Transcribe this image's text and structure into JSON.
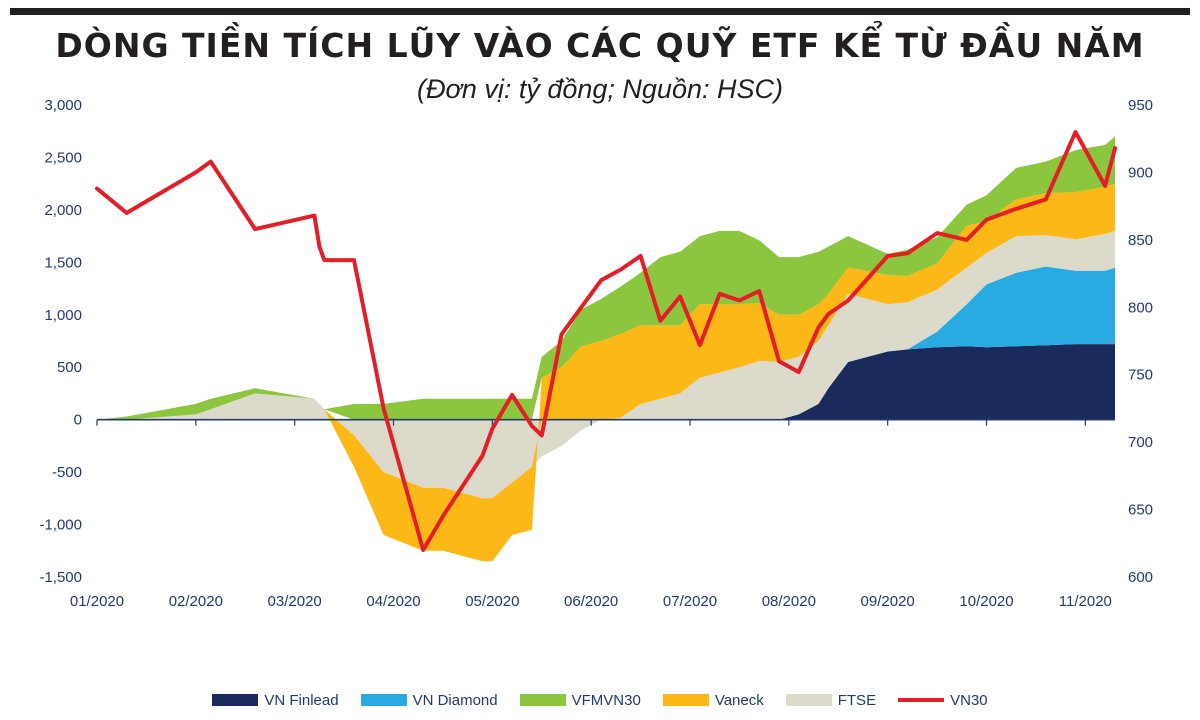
{
  "header": {
    "title": "DÒNG TIỀN TÍCH LŨY VÀO CÁC QUỸ ETF KỂ TỪ ĐẦU NĂM",
    "subtitle": "(Đơn vị: tỷ đồng; Nguồn: HSC)"
  },
  "chart_data": {
    "type": "area",
    "title": "DÒNG TIỀN TÍCH LŨY VÀO CÁC QUỸ ETF KỂ TỪ ĐẦU NĂM",
    "subtitle": "(Đơn vị: tỷ đồng; Nguồn: HSC)",
    "x_tick_labels": [
      "01/2020",
      "02/2020",
      "03/2020",
      "04/2020",
      "05/2020",
      "06/2020",
      "07/2020",
      "08/2020",
      "09/2020",
      "10/2020",
      "11/2020"
    ],
    "y_left_ticks": [
      "3,000",
      "2,500",
      "2,000",
      "1,500",
      "1,000",
      "500",
      "0",
      "-500",
      "-1,000",
      "-1,500"
    ],
    "y_left_range": [
      -1500,
      3000
    ],
    "y_right_ticks": [
      "950",
      "900",
      "850",
      "800",
      "750",
      "700",
      "650",
      "600"
    ],
    "y_right_range": [
      600,
      950
    ],
    "x_range": [
      0,
      10.3
    ],
    "legend_position": "bottom",
    "grid": false,
    "stacked_series_bottom_to_top": [
      "VN Finlead",
      "VN Diamond",
      "FTSE",
      "Vaneck",
      "VFMVN30"
    ],
    "x": [
      0,
      0.3,
      1,
      1.15,
      1.6,
      2.2,
      2.25,
      2.3,
      2.6,
      2.9,
      3.3,
      3.5,
      3.9,
      4,
      4.2,
      4.4,
      4.5,
      4.7,
      4.9,
      5.1,
      5.3,
      5.5,
      5.7,
      5.9,
      6.1,
      6.3,
      6.5,
      6.7,
      6.9,
      7.1,
      7.3,
      7.4,
      7.6,
      8,
      8.2,
      8.5,
      8.8,
      9,
      9.3,
      9.6,
      9.9,
      10.2,
      10.3
    ],
    "series": [
      {
        "name": "VN Finlead",
        "axis": "left",
        "color": "#1b2a5c",
        "values": [
          0,
          0,
          0,
          0,
          0,
          0,
          0,
          0,
          0,
          0,
          0,
          0,
          0,
          0,
          0,
          0,
          0,
          0,
          0,
          0,
          0,
          0,
          0,
          0,
          0,
          0,
          0,
          0,
          0,
          50,
          150,
          300,
          550,
          650,
          670,
          690,
          700,
          690,
          700,
          710,
          720,
          720,
          720
        ]
      },
      {
        "name": "VN Diamond",
        "axis": "left",
        "color": "#29abe2",
        "values": [
          0,
          0,
          0,
          0,
          0,
          0,
          0,
          0,
          0,
          0,
          0,
          0,
          0,
          0,
          0,
          0,
          0,
          0,
          0,
          0,
          0,
          0,
          0,
          0,
          0,
          0,
          0,
          0,
          0,
          0,
          0,
          0,
          0,
          0,
          0,
          150,
          400,
          600,
          700,
          750,
          700,
          700,
          730
        ]
      },
      {
        "name": "FTSE",
        "axis": "left",
        "color": "#dcdacb",
        "values": [
          0,
          0,
          50,
          100,
          250,
          200,
          150,
          100,
          -150,
          -500,
          -650,
          -650,
          -750,
          -750,
          -600,
          -450,
          -350,
          -250,
          -100,
          0,
          20,
          150,
          200,
          250,
          400,
          450,
          500,
          560,
          550,
          550,
          600,
          600,
          650,
          450,
          450,
          400,
          350,
          300,
          350,
          300,
          300,
          350,
          350
        ]
      },
      {
        "name": "Vaneck",
        "axis": "left",
        "color": "#fbb817",
        "values": [
          0,
          0,
          0,
          0,
          0,
          0,
          0,
          0,
          -300,
          -600,
          -600,
          -600,
          -600,
          -600,
          -500,
          -600,
          400,
          500,
          700,
          750,
          800,
          750,
          700,
          650,
          700,
          650,
          600,
          550,
          450,
          400,
          350,
          300,
          250,
          280,
          250,
          250,
          400,
          300,
          350,
          400,
          450,
          450,
          450
        ]
      },
      {
        "name": "VFMVN30",
        "axis": "left",
        "color": "#8cc63f",
        "values": [
          0,
          30,
          100,
          100,
          50,
          0,
          0,
          0,
          150,
          150,
          200,
          200,
          200,
          200,
          200,
          200,
          200,
          250,
          350,
          400,
          450,
          500,
          650,
          700,
          650,
          700,
          700,
          600,
          550,
          550,
          500,
          450,
          300,
          200,
          250,
          250,
          200,
          250,
          300,
          300,
          400,
          400,
          450
        ]
      },
      {
        "name": "VN30",
        "axis": "right",
        "color": "#e41e26",
        "values": [
          888,
          870,
          900,
          908,
          858,
          868,
          845,
          835,
          835,
          725,
          620,
          645,
          690,
          710,
          735,
          712,
          705,
          780,
          800,
          820,
          828,
          838,
          790,
          808,
          772,
          810,
          805,
          812,
          760,
          752,
          785,
          795,
          805,
          838,
          840,
          855,
          850,
          865,
          873,
          880,
          930,
          890,
          918
        ]
      }
    ]
  },
  "legend": [
    {
      "label": "VN Finlead",
      "color": "#1b2a5c",
      "kind": "area"
    },
    {
      "label": "VN Diamond",
      "color": "#29abe2",
      "kind": "area"
    },
    {
      "label": "VFMVN30",
      "color": "#8cc63f",
      "kind": "area"
    },
    {
      "label": "Vaneck",
      "color": "#fbb817",
      "kind": "area"
    },
    {
      "label": "FTSE",
      "color": "#dcdacb",
      "kind": "area"
    },
    {
      "label": "VN30",
      "color": "#e41e26",
      "kind": "line"
    }
  ]
}
